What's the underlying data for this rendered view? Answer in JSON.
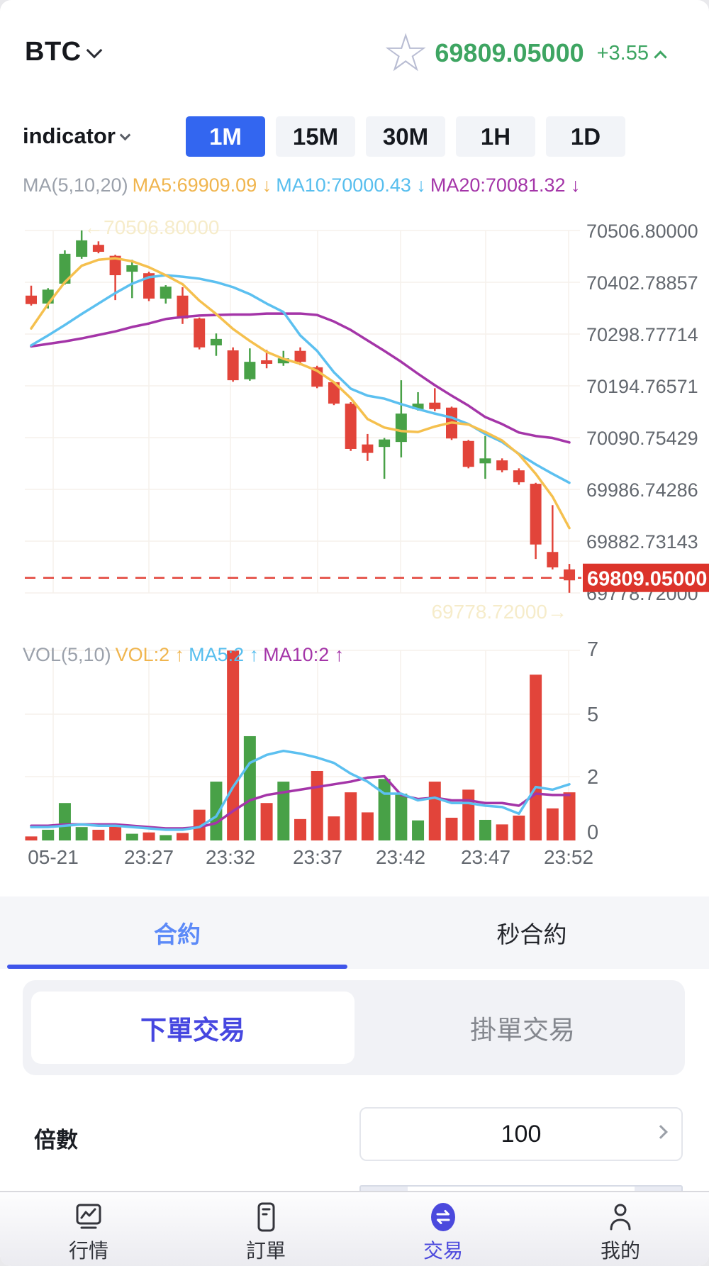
{
  "header": {
    "symbol": "BTC",
    "price": "69809.05000",
    "change": "+3.55"
  },
  "toolbar": {
    "indicator_label": "indicator",
    "timeframes": [
      "1M",
      "15M",
      "30M",
      "1H",
      "1D"
    ],
    "active_timeframe": "1M"
  },
  "ma_legend": {
    "prefix": "MA(5,10,20)",
    "ma5": "MA5:69909.09 ↓",
    "ma10": "MA10:70000.43 ↓",
    "ma20": "MA20:70081.32 ↓"
  },
  "vol_legend": {
    "prefix": "VOL(5,10)",
    "vol": "VOL:2 ↑",
    "ma5": "MA5:2 ↑",
    "ma10": "MA10:2 ↑"
  },
  "tabs": {
    "contract": "合約",
    "seconds": "秒合約"
  },
  "trade_tabs": {
    "market": "下單交易",
    "limit": "掛單交易"
  },
  "form": {
    "multiplier_label": "倍數",
    "multiplier_value": "100"
  },
  "nav": {
    "items": [
      {
        "label": "行情"
      },
      {
        "label": "訂單"
      },
      {
        "label": "交易"
      },
      {
        "label": "我的"
      }
    ],
    "active": "交易"
  },
  "colors": {
    "accent_blue": "#3366f0",
    "tab_blue": "#5c8af8",
    "underline_blue": "#3f55ea",
    "trade_blue": "#4647e0",
    "nav_blue": "#4b49dd",
    "up_green": "#48a147",
    "down_red": "#e2443a",
    "price_green": "#3ea562",
    "ma5": "#f5c04e",
    "ma10": "#5cc0f0",
    "ma20": "#a435a8",
    "tag_red": "#dc342b",
    "axis_text": "#63686f",
    "marker_faint": "#f6ecca",
    "grid": "#f6f1ec"
  },
  "chart_data": {
    "type": "candlestick+volume",
    "title": "BTC 1M candlestick with MA(5,10,20) and volume",
    "price_axis_labels": [
      "70506.80000",
      "70402.78857",
      "70298.77714",
      "70194.76571",
      "70090.75429",
      "69986.74286",
      "69882.73143",
      "69778.72000"
    ],
    "price_axis_values": [
      70506.8,
      70402.78857,
      70298.77714,
      70194.76571,
      70090.75429,
      69986.74286,
      69882.73143,
      69778.72
    ],
    "vol_axis_labels": [
      "7",
      "5",
      "2",
      "0"
    ],
    "x_labels": [
      "05-21",
      "23:27",
      "23:32",
      "23:37",
      "23:42",
      "23:47",
      "23:52"
    ],
    "high_marker": "←70506.80000",
    "low_marker": "69778.72000→",
    "last_price_label": "69809.05000",
    "last_price": 69809.05,
    "price_range": [
      69778.72,
      70506.8
    ],
    "candles_ochl": [
      [
        70376,
        70359,
        70396,
        70356
      ],
      [
        70360,
        70388,
        70391,
        70350
      ],
      [
        70400,
        70460,
        70467,
        70398
      ],
      [
        70454,
        70487,
        70507,
        70450
      ],
      [
        70478,
        70464,
        70485,
        70461
      ],
      [
        70456,
        70417,
        70458,
        70367
      ],
      [
        70424,
        70437,
        70448,
        70371
      ],
      [
        70421,
        70370,
        70424,
        70365
      ],
      [
        70370,
        70394,
        70397,
        70360
      ],
      [
        70376,
        70330,
        70393,
        70319
      ],
      [
        70330,
        70272,
        70332,
        70268
      ],
      [
        70276,
        70289,
        70300,
        70255
      ],
      [
        70266,
        70206,
        70272,
        70203
      ],
      [
        70208,
        70243,
        70270,
        70205
      ],
      [
        70246,
        70239,
        70267,
        70230
      ],
      [
        70240,
        70250,
        70265,
        70235
      ],
      [
        70265,
        70243,
        70272,
        70236
      ],
      [
        70232,
        70193,
        70235,
        70190
      ],
      [
        70202,
        70159,
        70204,
        70156
      ],
      [
        70159,
        70068,
        70162,
        70064
      ],
      [
        70077,
        70060,
        70098,
        70044
      ],
      [
        70072,
        70087,
        70090,
        70008
      ],
      [
        70082,
        70139,
        70206,
        70051
      ],
      [
        70148,
        70159,
        70182,
        70145
      ],
      [
        70161,
        70148,
        70190,
        70144
      ],
      [
        70151,
        70089,
        70153,
        70086
      ],
      [
        70084,
        70032,
        70086,
        70029
      ],
      [
        70039,
        70049,
        70094,
        70008
      ],
      [
        70045,
        70025,
        70049,
        70021
      ],
      [
        70025,
        70001,
        70029,
        69996
      ],
      [
        69998,
        69876,
        70000,
        69847
      ],
      [
        69861,
        69830,
        69955,
        69826
      ],
      [
        69826,
        69804,
        69837,
        69779
      ]
    ],
    "ma5": [
      70310,
      70359,
      70403,
      70436,
      70448,
      70451,
      70445,
      70433,
      70417,
      70399,
      70366,
      70339,
      70309,
      70285,
      70263,
      70249,
      70239,
      70225,
      70202,
      70170,
      70128,
      70111,
      70104,
      70102,
      70113,
      70121,
      70117,
      70102,
      70085,
      70057,
      70018,
      69972,
      69909
    ],
    "ma10": [
      70276,
      70296,
      70317,
      70339,
      70360,
      70381,
      70400,
      70413,
      70417,
      70414,
      70410,
      70403,
      70393,
      70379,
      70360,
      70343,
      70296,
      70265,
      70222,
      70189,
      70175,
      70169,
      70158,
      70148,
      70139,
      70131,
      70118,
      70098,
      70082,
      70058,
      70037,
      70018,
      70000
    ],
    "ma20": [
      70274,
      70279,
      70284,
      70290,
      70297,
      70304,
      70313,
      70320,
      70329,
      70333,
      70336,
      70337,
      70338,
      70338,
      70340,
      70340,
      70340,
      70337,
      70324,
      70307,
      70286,
      70265,
      70243,
      70219,
      70196,
      70175,
      70155,
      70132,
      70118,
      70101,
      70094,
      70090,
      70081
    ],
    "volumes": [
      0.15,
      0.4,
      1.4,
      0.5,
      0.4,
      0.55,
      0.25,
      0.3,
      0.2,
      0.28,
      1.15,
      2.2,
      7.1,
      3.9,
      1.4,
      2.2,
      0.8,
      2.6,
      0.9,
      1.8,
      1.05,
      2.3,
      1.75,
      0.75,
      2.2,
      0.85,
      1.9,
      0.77,
      0.6,
      0.93,
      6.2,
      1.2,
      1.8
    ],
    "vol_ma5": [
      0.5,
      0.5,
      0.55,
      0.6,
      0.55,
      0.55,
      0.5,
      0.45,
      0.4,
      0.4,
      0.5,
      0.9,
      2.0,
      2.9,
      3.2,
      3.35,
      3.25,
      3.1,
      2.9,
      2.5,
      2.2,
      1.75,
      1.75,
      1.5,
      1.6,
      1.4,
      1.4,
      1.3,
      1.25,
      1.0,
      2.0,
      1.9,
      2.1
    ],
    "vol_ma10": [
      0.55,
      0.55,
      0.6,
      0.6,
      0.6,
      0.6,
      0.55,
      0.5,
      0.45,
      0.45,
      0.5,
      0.65,
      1.1,
      1.5,
      1.7,
      1.8,
      1.9,
      2.0,
      2.1,
      2.2,
      2.35,
      2.4,
      1.7,
      1.55,
      1.6,
      1.5,
      1.5,
      1.4,
      1.4,
      1.3,
      1.75,
      1.7,
      1.7
    ]
  }
}
